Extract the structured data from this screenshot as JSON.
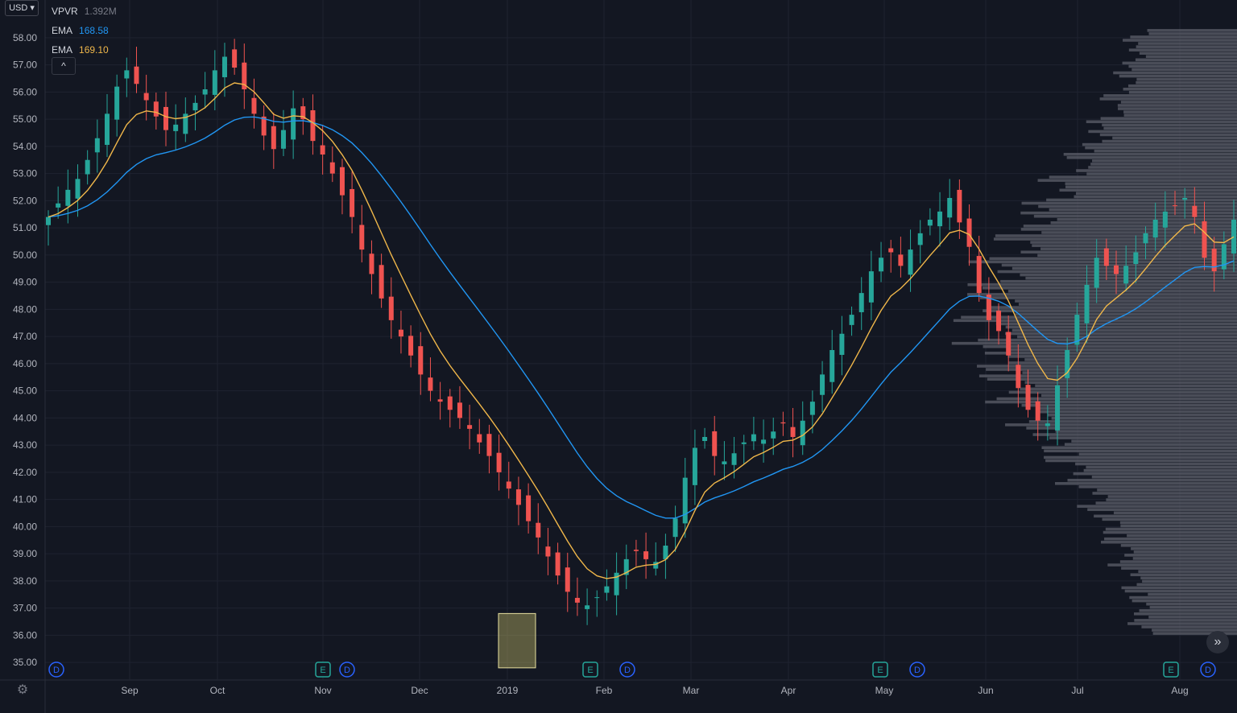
{
  "currency": {
    "label": "USD"
  },
  "legend": {
    "vpvr": {
      "name": "VPVR",
      "value": "1.392M"
    },
    "ema1": {
      "name": "EMA",
      "value": "168.58",
      "color": "#2196f3"
    },
    "ema2": {
      "name": "EMA",
      "value": "169.10",
      "color": "#f0b74a"
    }
  },
  "collapse": {
    "label": "^"
  },
  "scroll": {
    "label": "»"
  },
  "colors": {
    "background": "#131722",
    "up": "#26a69a",
    "down": "#ef5350",
    "grid": "#1f2330",
    "axis_text": "#b2b5be",
    "vpvr": "#5d606b"
  },
  "chart_data": {
    "type": "candlestick",
    "y_ticks": [
      "58.00",
      "57.00",
      "56.00",
      "55.00",
      "54.00",
      "53.00",
      "52.00",
      "51.00",
      "50.00",
      "49.00",
      "48.00",
      "47.00",
      "46.00",
      "45.00",
      "44.00",
      "43.00",
      "42.00",
      "41.00",
      "40.00",
      "39.00",
      "38.00",
      "37.00",
      "36.00",
      "35.00"
    ],
    "ylim": [
      34.5,
      58.5
    ],
    "x_labels": [
      "Sep",
      "Oct",
      "Nov",
      "Dec",
      "2019",
      "Feb",
      "Mar",
      "Apr",
      "May",
      "Jun",
      "Jul",
      "Aug"
    ],
    "closes": [
      51.4,
      51.9,
      52.4,
      52.8,
      53.5,
      54.3,
      55.2,
      56.2,
      56.8,
      56.3,
      55.7,
      55.1,
      54.6,
      54.8,
      55.2,
      55.6,
      56.1,
      56.8,
      57.3,
      56.9,
      56.1,
      55.2,
      54.4,
      53.9,
      54.6,
      55.4,
      55.0,
      54.2,
      53.7,
      53.0,
      52.2,
      51.4,
      50.2,
      49.3,
      48.4,
      47.6,
      47.0,
      46.3,
      45.6,
      45.0,
      44.6,
      44.3,
      44.0,
      43.6,
      43.1,
      42.6,
      42.0,
      41.4,
      40.8,
      40.2,
      39.6,
      38.9,
      38.2,
      37.6,
      37.2,
      37.1,
      37.4,
      37.8,
      38.3,
      38.8,
      39.1,
      38.8,
      38.7,
      39.3,
      40.3,
      41.8,
      42.9,
      43.3,
      42.6,
      42.4,
      42.7,
      43.1,
      43.4,
      43.2,
      43.5,
      43.8,
      43.3,
      43.9,
      44.6,
      45.6,
      46.5,
      47.1,
      47.8,
      48.6,
      49.4,
      49.9,
      50.1,
      49.6,
      50.2,
      50.8,
      51.3,
      51.6,
      52.1,
      51.2,
      50.3,
      48.6,
      47.6,
      47.2,
      46.3,
      45.1,
      44.3,
      43.9,
      43.8,
      45.2,
      46.5,
      47.8,
      48.9,
      49.9,
      49.6,
      49.3,
      49.6,
      50.1,
      50.8,
      51.3,
      51.6,
      51.8,
      52.1,
      51.4,
      49.9,
      49.4,
      50.4,
      51.3
    ],
    "ema_fast": {
      "name": "EMA",
      "value": 169.1
    },
    "ema_slow": {
      "name": "EMA",
      "value": 168.58
    },
    "event_markers": [
      {
        "type": "D",
        "date": "Aug"
      },
      {
        "type": "E",
        "date": "Nov"
      },
      {
        "type": "D",
        "date": "Nov"
      },
      {
        "type": "E",
        "date": "Jan"
      },
      {
        "type": "D",
        "date": "Jan"
      },
      {
        "type": "E",
        "date": "Apr"
      },
      {
        "type": "D",
        "date": "May"
      },
      {
        "type": "E",
        "date": "Jul"
      },
      {
        "type": "D",
        "date": "Aug"
      }
    ],
    "highlight": {
      "label": "low box",
      "date": "2019-01",
      "price_range": [
        34.8,
        36.8
      ]
    }
  }
}
